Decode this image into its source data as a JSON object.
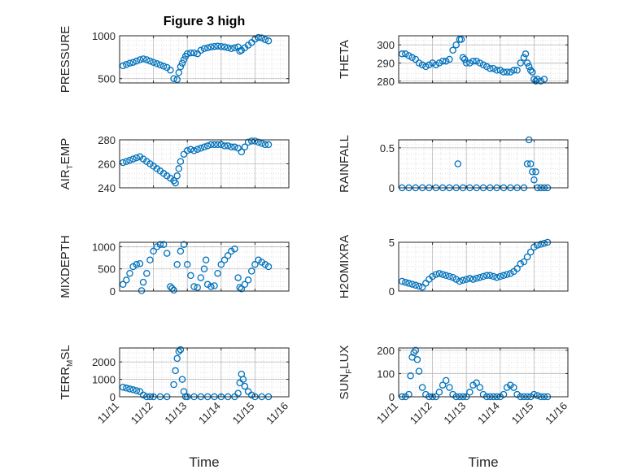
{
  "figure": {
    "title": "Figure 3 high",
    "marker_color": "#0072BD",
    "grid": true,
    "x_tick_labels": [
      "11/11",
      "11/12",
      "11/13",
      "11/14",
      "11/15",
      "11/16"
    ],
    "xlabel": "Time"
  },
  "chart_data": [
    {
      "type": "scatter",
      "id": "pressure",
      "ylabel": "PRESSURE",
      "ylim": [
        450,
        1000
      ],
      "yticks": [
        500,
        1000
      ],
      "xlim": [
        0,
        5
      ],
      "xticks": [
        0,
        1,
        2,
        3,
        4,
        5
      ],
      "x": [
        0.1,
        0.2,
        0.3,
        0.4,
        0.5,
        0.6,
        0.7,
        0.8,
        0.9,
        1.0,
        1.1,
        1.2,
        1.3,
        1.4,
        1.5,
        1.6,
        1.7,
        1.75,
        1.8,
        1.85,
        1.9,
        1.95,
        2.0,
        2.1,
        2.2,
        2.3,
        2.4,
        2.5,
        2.6,
        2.7,
        2.8,
        2.9,
        3.0,
        3.1,
        3.2,
        3.3,
        3.4,
        3.5,
        3.55,
        3.6,
        3.7,
        3.8,
        3.9,
        4.0,
        4.1,
        4.2,
        4.3,
        4.4
      ],
      "y": [
        650,
        665,
        680,
        690,
        705,
        720,
        730,
        720,
        705,
        690,
        675,
        660,
        645,
        630,
        600,
        500,
        490,
        570,
        640,
        680,
        720,
        760,
        790,
        800,
        800,
        790,
        830,
        850,
        860,
        870,
        875,
        880,
        875,
        870,
        860,
        850,
        860,
        870,
        820,
        830,
        860,
        890,
        920,
        960,
        980,
        975,
        955,
        940
      ]
    },
    {
      "type": "scatter",
      "id": "theta",
      "ylabel": "THETA",
      "ylim": [
        279,
        305
      ],
      "yticks": [
        280,
        290,
        300
      ],
      "xlim": [
        0,
        5
      ],
      "xticks": [
        0,
        1,
        2,
        3,
        4,
        5
      ],
      "x": [
        0.1,
        0.2,
        0.3,
        0.4,
        0.5,
        0.6,
        0.7,
        0.8,
        0.9,
        1.0,
        1.1,
        1.2,
        1.3,
        1.4,
        1.5,
        1.6,
        1.7,
        1.8,
        1.85,
        1.9,
        1.95,
        2.0,
        2.1,
        2.2,
        2.3,
        2.4,
        2.5,
        2.6,
        2.7,
        2.8,
        2.9,
        3.0,
        3.1,
        3.2,
        3.3,
        3.4,
        3.5,
        3.6,
        3.7,
        3.75,
        3.8,
        3.85,
        3.9,
        3.95,
        4.0,
        4.05,
        4.1,
        4.2,
        4.3
      ],
      "y": [
        295,
        295,
        294,
        293,
        292,
        290,
        289,
        288,
        289,
        290,
        289,
        290,
        291,
        291,
        292,
        297,
        300,
        303,
        303,
        293,
        292,
        290,
        290,
        291,
        291,
        290,
        289,
        288,
        287,
        287,
        286,
        286,
        285,
        285,
        285,
        286,
        286,
        290,
        293,
        295,
        290,
        288,
        286,
        285,
        281,
        280,
        281,
        280,
        281
      ]
    },
    {
      "type": "scatter",
      "id": "air_temp",
      "ylabel": "AIR_TEMP",
      "ylim": [
        240,
        280
      ],
      "yticks": [
        240,
        260,
        280
      ],
      "xlim": [
        0,
        5
      ],
      "xticks": [
        0,
        1,
        2,
        3,
        4,
        5
      ],
      "x": [
        0.1,
        0.2,
        0.3,
        0.4,
        0.5,
        0.6,
        0.7,
        0.8,
        0.9,
        1.0,
        1.1,
        1.2,
        1.3,
        1.4,
        1.5,
        1.6,
        1.65,
        1.7,
        1.75,
        1.8,
        1.9,
        2.0,
        2.1,
        2.2,
        2.3,
        2.4,
        2.5,
        2.6,
        2.7,
        2.8,
        2.9,
        3.0,
        3.1,
        3.2,
        3.3,
        3.4,
        3.5,
        3.6,
        3.7,
        3.8,
        3.9,
        4.0,
        4.1,
        4.2,
        4.3,
        4.4
      ],
      "y": [
        261,
        262,
        263,
        264,
        265,
        266,
        264,
        262,
        260,
        258,
        256,
        254,
        252,
        250,
        248,
        246,
        244,
        250,
        256,
        262,
        268,
        271,
        272,
        271,
        272,
        273,
        274,
        275,
        276,
        276,
        276,
        276,
        275,
        275,
        274,
        274,
        273,
        270,
        274,
        278,
        279,
        279,
        278,
        277,
        276,
        276
      ]
    },
    {
      "type": "scatter",
      "id": "rainfall",
      "ylabel": "RAINFALL",
      "ylim": [
        0,
        0.6
      ],
      "yticks": [
        0,
        0.5
      ],
      "xlim": [
        0,
        5
      ],
      "xticks": [
        0,
        1,
        2,
        3,
        4,
        5
      ],
      "x": [
        0.1,
        0.3,
        0.5,
        0.7,
        0.9,
        1.1,
        1.3,
        1.5,
        1.7,
        1.75,
        1.9,
        2.1,
        2.3,
        2.5,
        2.7,
        2.9,
        3.1,
        3.3,
        3.5,
        3.7,
        3.8,
        3.85,
        3.9,
        3.95,
        4.0,
        4.05,
        4.1,
        4.2,
        4.3,
        4.4
      ],
      "y": [
        0,
        0,
        0,
        0,
        0,
        0,
        0,
        0,
        0,
        0.3,
        0,
        0,
        0,
        0,
        0,
        0,
        0,
        0,
        0,
        0,
        0.3,
        0.6,
        0.3,
        0.2,
        0.1,
        0.2,
        0,
        0,
        0,
        0
      ]
    },
    {
      "type": "scatter",
      "id": "mixdepth",
      "ylabel": "MIXDEPTH",
      "ylim": [
        0,
        1100
      ],
      "yticks": [
        0,
        500,
        1000
      ],
      "xlim": [
        0,
        5
      ],
      "xticks": [
        0,
        1,
        2,
        3,
        4,
        5
      ],
      "x": [
        0.1,
        0.2,
        0.3,
        0.4,
        0.5,
        0.6,
        0.65,
        0.7,
        0.8,
        0.9,
        1.0,
        1.1,
        1.2,
        1.3,
        1.4,
        1.5,
        1.55,
        1.6,
        1.7,
        1.8,
        1.9,
        2.0,
        2.1,
        2.2,
        2.3,
        2.4,
        2.5,
        2.55,
        2.6,
        2.7,
        2.8,
        2.9,
        3.0,
        3.1,
        3.2,
        3.3,
        3.4,
        3.5,
        3.55,
        3.6,
        3.7,
        3.8,
        3.9,
        4.0,
        4.1,
        4.2,
        4.3,
        4.4
      ],
      "y": [
        150,
        250,
        400,
        550,
        600,
        620,
        10,
        200,
        400,
        700,
        900,
        1000,
        1050,
        1050,
        850,
        100,
        60,
        20,
        600,
        900,
        1050,
        600,
        350,
        100,
        80,
        300,
        500,
        700,
        150,
        100,
        120,
        400,
        600,
        700,
        800,
        900,
        950,
        300,
        80,
        50,
        150,
        250,
        450,
        600,
        700,
        650,
        600,
        550
      ]
    },
    {
      "type": "scatter",
      "id": "h2omixra",
      "ylabel": "H2OMIXRA",
      "ylim": [
        0,
        5
      ],
      "yticks": [
        0,
        5
      ],
      "xlim": [
        0,
        5
      ],
      "xticks": [
        0,
        1,
        2,
        3,
        4,
        5
      ],
      "x": [
        0.1,
        0.2,
        0.3,
        0.4,
        0.5,
        0.6,
        0.7,
        0.8,
        0.9,
        1.0,
        1.1,
        1.2,
        1.3,
        1.4,
        1.5,
        1.6,
        1.7,
        1.8,
        1.9,
        2.0,
        2.1,
        2.2,
        2.3,
        2.4,
        2.5,
        2.6,
        2.7,
        2.8,
        2.9,
        3.0,
        3.1,
        3.2,
        3.3,
        3.4,
        3.5,
        3.6,
        3.7,
        3.8,
        3.9,
        4.0,
        4.1,
        4.2,
        4.3,
        4.4
      ],
      "y": [
        1.0,
        0.9,
        0.8,
        0.7,
        0.6,
        0.5,
        0.4,
        0.8,
        1.2,
        1.5,
        1.7,
        1.8,
        1.7,
        1.6,
        1.5,
        1.4,
        1.2,
        1.0,
        1.1,
        1.2,
        1.3,
        1.2,
        1.3,
        1.4,
        1.5,
        1.6,
        1.6,
        1.5,
        1.4,
        1.5,
        1.6,
        1.7,
        1.8,
        2.0,
        2.3,
        2.8,
        3.0,
        3.5,
        4.0,
        4.5,
        4.7,
        4.8,
        4.9,
        5.0
      ]
    },
    {
      "type": "scatter",
      "id": "terr_msl",
      "ylabel": "TERR_MSL",
      "ylim": [
        0,
        2800
      ],
      "yticks": [
        0,
        1000,
        2000
      ],
      "xlim": [
        0,
        5
      ],
      "xticks": [
        0,
        1,
        2,
        3,
        4,
        5
      ],
      "x": [
        0.1,
        0.2,
        0.3,
        0.4,
        0.5,
        0.6,
        0.7,
        0.8,
        0.9,
        1.0,
        1.2,
        1.4,
        1.6,
        1.65,
        1.7,
        1.75,
        1.8,
        1.85,
        1.9,
        1.95,
        2.0,
        2.2,
        2.4,
        2.6,
        2.8,
        3.0,
        3.2,
        3.4,
        3.5,
        3.55,
        3.6,
        3.65,
        3.7,
        3.8,
        3.9,
        4.0,
        4.2,
        4.4
      ],
      "y": [
        550,
        500,
        450,
        400,
        350,
        300,
        100,
        0,
        0,
        0,
        0,
        0,
        700,
        1500,
        2200,
        2600,
        2700,
        1000,
        300,
        0,
        0,
        0,
        0,
        0,
        0,
        0,
        0,
        0,
        200,
        800,
        1300,
        1000,
        600,
        300,
        100,
        0,
        0,
        0
      ]
    },
    {
      "type": "scatter",
      "id": "sun_flux",
      "ylabel": "SUN_FLUX",
      "ylim": [
        0,
        210
      ],
      "yticks": [
        0,
        100,
        200
      ],
      "xlim": [
        0,
        5
      ],
      "xticks": [
        0,
        1,
        2,
        3,
        4,
        5
      ],
      "x": [
        0.1,
        0.2,
        0.3,
        0.35,
        0.4,
        0.45,
        0.5,
        0.55,
        0.6,
        0.7,
        0.8,
        0.9,
        1.0,
        1.1,
        1.2,
        1.3,
        1.4,
        1.5,
        1.6,
        1.7,
        1.8,
        1.9,
        2.0,
        2.1,
        2.2,
        2.3,
        2.4,
        2.5,
        2.6,
        2.7,
        2.8,
        2.9,
        3.0,
        3.1,
        3.2,
        3.3,
        3.4,
        3.5,
        3.6,
        3.7,
        3.8,
        3.9,
        4.0,
        4.1,
        4.2,
        4.3,
        4.4
      ],
      "y": [
        0,
        0,
        10,
        90,
        170,
        190,
        200,
        160,
        110,
        40,
        10,
        0,
        0,
        0,
        20,
        50,
        70,
        40,
        10,
        0,
        0,
        0,
        0,
        20,
        50,
        60,
        40,
        10,
        0,
        0,
        0,
        0,
        0,
        10,
        40,
        50,
        40,
        10,
        0,
        0,
        0,
        0,
        10,
        5,
        0,
        0,
        0
      ]
    }
  ]
}
